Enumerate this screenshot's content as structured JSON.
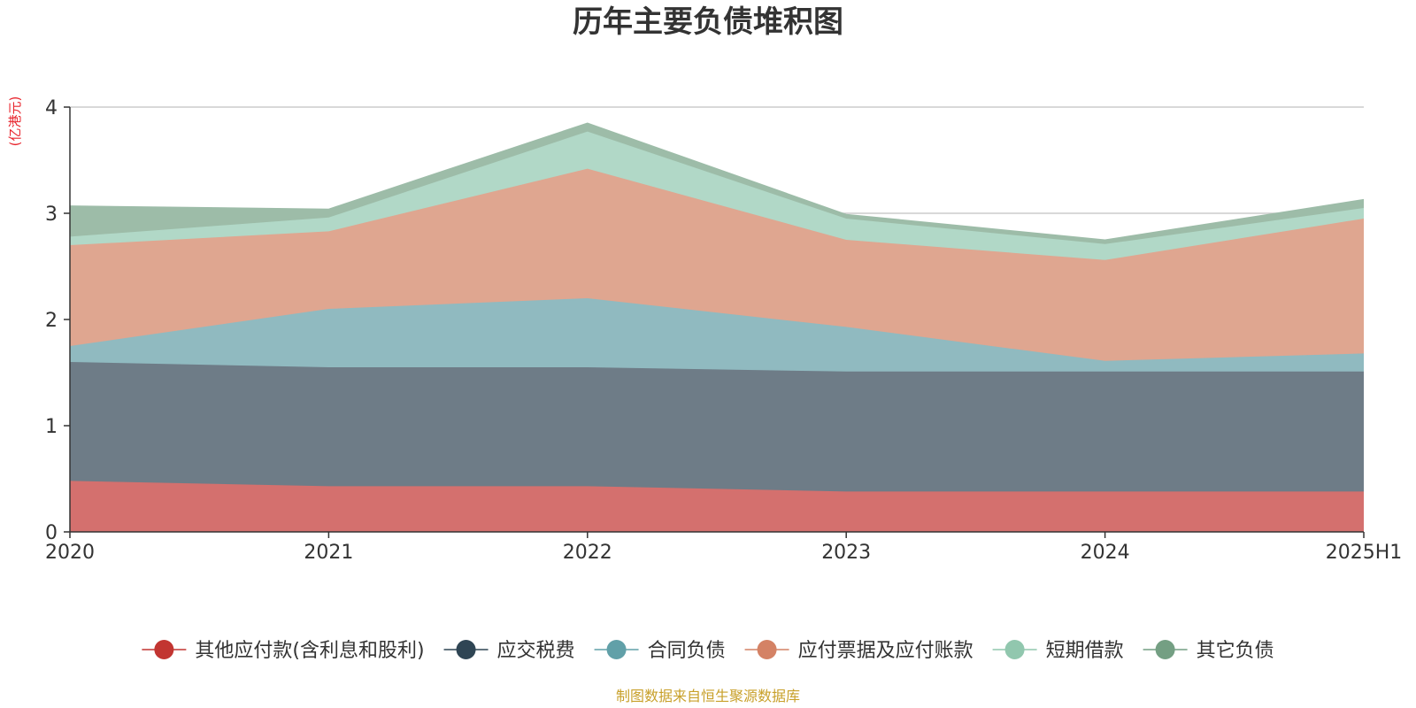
{
  "chart_data": {
    "type": "area",
    "stacked": true,
    "title": "历年主要负债堆积图",
    "unit": "(亿港元)",
    "categories": [
      "2020",
      "2021",
      "2022",
      "2023",
      "2024",
      "2025H1"
    ],
    "ylim": [
      0,
      4
    ],
    "yticks": [
      "0",
      "1",
      "2",
      "3",
      "4"
    ],
    "grid": true,
    "legend_position": "bottom",
    "series": [
      {
        "name": "其他应付款(含利息和股利)",
        "color": "#c23531",
        "fill": "#d4706e",
        "values": [
          0.48,
          0.43,
          0.43,
          0.38,
          0.38,
          0.38
        ]
      },
      {
        "name": "应交税费",
        "color": "#2f4554",
        "fill": "#6e7c87",
        "values": [
          1.12,
          1.12,
          1.12,
          1.13,
          1.13,
          1.13
        ]
      },
      {
        "name": "合同负债",
        "color": "#61a0a8",
        "fill": "#90bac0",
        "values": [
          0.15,
          0.55,
          0.65,
          0.42,
          0.1,
          0.17
        ]
      },
      {
        "name": "应付票据及应付账款",
        "color": "#d48265",
        "fill": "#dfa690",
        "values": [
          0.95,
          0.73,
          1.22,
          0.82,
          0.95,
          1.27
        ]
      },
      {
        "name": "短期借款",
        "color": "#91c7ae",
        "fill": "#b1d8c7",
        "values": [
          0.08,
          0.13,
          0.35,
          0.2,
          0.15,
          0.1
        ]
      },
      {
        "name": "其它负债",
        "color": "#749f83",
        "fill": "#9dbca8",
        "values": [
          0.29,
          0.08,
          0.08,
          0.04,
          0.04,
          0.08
        ]
      }
    ],
    "source": "制图数据来自恒生聚源数据库"
  }
}
